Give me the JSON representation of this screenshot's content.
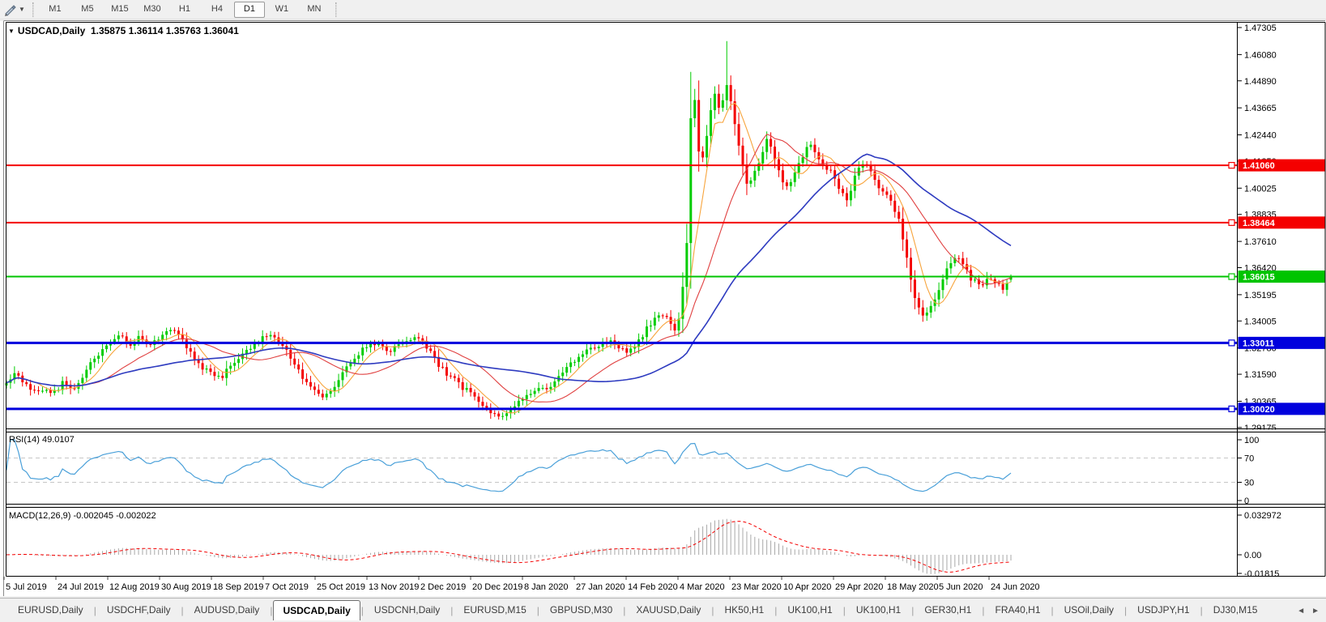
{
  "toolbar": {
    "tool_icon": "drawing-tool",
    "timeframes": [
      "M1",
      "M5",
      "M15",
      "M30",
      "H1",
      "H4",
      "D1",
      "W1",
      "MN"
    ],
    "active_timeframe": "D1"
  },
  "chart": {
    "title": "USDCAD,Daily",
    "ohlc": "1.35875 1.36114 1.35763 1.36041"
  },
  "chart_data": {
    "type": "candlestick",
    "symbol": "USDCAD",
    "period": "Daily",
    "current_candle": {
      "open": 1.35875,
      "high": 1.36114,
      "low": 1.35763,
      "close": 1.36041
    },
    "price_axis_ticks": [
      "1.47305",
      "1.46080",
      "1.44890",
      "1.43665",
      "1.42440",
      "1.41250",
      "1.40025",
      "1.38835",
      "1.37610",
      "1.36420",
      "1.35195",
      "1.34005",
      "1.32780",
      "1.31590",
      "1.30365",
      "1.29175"
    ],
    "date_axis_ticks": [
      "5 Jul 2019",
      "24 Jul 2019",
      "12 Aug 2019",
      "30 Aug 2019",
      "18 Sep 2019",
      "7 Oct 2019",
      "25 Oct 2019",
      "13 Nov 2019",
      "2 Dec 2019",
      "20 Dec 2019",
      "8 Jan 2020",
      "27 Jan 2020",
      "14 Feb 2020",
      "4 Mar 2020",
      "23 Mar 2020",
      "10 Apr 2020",
      "29 Apr 2020",
      "18 May 2020",
      "5 Jun 2020",
      "24 Jun 2020"
    ],
    "levels": [
      {
        "price": 1.4106,
        "label": "1.41060",
        "color": "#f40000",
        "width": 2
      },
      {
        "price": 1.38464,
        "label": "1.38464",
        "color": "#f40000",
        "width": 2
      },
      {
        "price": 1.36015,
        "label": "1.36015",
        "color": "#00c400",
        "width": 2
      },
      {
        "price": 1.33011,
        "label": "1.33011",
        "color": "#0000dd",
        "width": 3
      },
      {
        "price": 1.3002,
        "label": "1.30020",
        "color": "#0000dd",
        "width": 3
      }
    ],
    "candles": {
      "count": 252,
      "bull_color": "#00cc00",
      "bear_color": "#f40000",
      "spike_high": 1.4669,
      "close_path": [
        [
          0.0,
          1.313
        ],
        [
          0.01,
          1.316
        ],
        [
          0.022,
          1.3105
        ],
        [
          0.035,
          1.3075
        ],
        [
          0.05,
          1.309
        ],
        [
          0.058,
          1.3135
        ],
        [
          0.066,
          1.3085
        ],
        [
          0.076,
          1.315
        ],
        [
          0.086,
          1.3225
        ],
        [
          0.095,
          1.327
        ],
        [
          0.102,
          1.33
        ],
        [
          0.112,
          1.3345
        ],
        [
          0.122,
          1.329
        ],
        [
          0.132,
          1.333
        ],
        [
          0.142,
          1.33
        ],
        [
          0.153,
          1.332
        ],
        [
          0.163,
          1.337
        ],
        [
          0.172,
          1.333
        ],
        [
          0.182,
          1.327
        ],
        [
          0.192,
          1.32
        ],
        [
          0.204,
          1.316
        ],
        [
          0.213,
          1.314
        ],
        [
          0.222,
          1.32
        ],
        [
          0.235,
          1.3245
        ],
        [
          0.247,
          1.329
        ],
        [
          0.256,
          1.333
        ],
        [
          0.266,
          1.334
        ],
        [
          0.276,
          1.329
        ],
        [
          0.287,
          1.321
        ],
        [
          0.297,
          1.313
        ],
        [
          0.307,
          1.308
        ],
        [
          0.317,
          1.3055
        ],
        [
          0.327,
          1.31
        ],
        [
          0.338,
          1.318
        ],
        [
          0.349,
          1.325
        ],
        [
          0.359,
          1.328
        ],
        [
          0.37,
          1.33
        ],
        [
          0.381,
          1.327
        ],
        [
          0.392,
          1.329
        ],
        [
          0.402,
          1.331
        ],
        [
          0.41,
          1.332
        ],
        [
          0.42,
          1.327
        ],
        [
          0.43,
          1.32
        ],
        [
          0.441,
          1.315
        ],
        [
          0.451,
          1.311
        ],
        [
          0.462,
          1.307
        ],
        [
          0.472,
          1.302
        ],
        [
          0.483,
          1.298
        ],
        [
          0.493,
          1.2958
        ],
        [
          0.503,
          1.299
        ],
        [
          0.513,
          1.3045
        ],
        [
          0.525,
          1.309
        ],
        [
          0.54,
          1.3105
        ],
        [
          0.553,
          1.316
        ],
        [
          0.565,
          1.322
        ],
        [
          0.578,
          1.326
        ],
        [
          0.59,
          1.329
        ],
        [
          0.603,
          1.331
        ],
        [
          0.616,
          1.3255
        ],
        [
          0.625,
          1.329
        ],
        [
          0.634,
          1.334
        ],
        [
          0.643,
          1.34
        ],
        [
          0.652,
          1.344
        ],
        [
          0.66,
          1.339
        ],
        [
          0.668,
          1.336
        ],
        [
          0.672,
          1.349
        ],
        [
          0.675,
          1.362
        ],
        [
          0.679,
          1.385
        ],
        [
          0.681,
          1.43
        ],
        [
          0.684,
          1.448
        ],
        [
          0.688,
          1.425
        ],
        [
          0.691,
          1.408
        ],
        [
          0.695,
          1.418
        ],
        [
          0.7,
          1.433
        ],
        [
          0.705,
          1.442
        ],
        [
          0.71,
          1.435
        ],
        [
          0.718,
          1.447
        ],
        [
          0.722,
          1.439
        ],
        [
          0.727,
          1.425
        ],
        [
          0.732,
          1.413
        ],
        [
          0.738,
          1.4
        ],
        [
          0.745,
          1.407
        ],
        [
          0.752,
          1.417
        ],
        [
          0.759,
          1.423
        ],
        [
          0.766,
          1.412
        ],
        [
          0.771,
          1.405
        ],
        [
          0.778,
          1.399
        ],
        [
          0.785,
          1.408
        ],
        [
          0.793,
          1.415
        ],
        [
          0.8,
          1.421
        ],
        [
          0.808,
          1.415
        ],
        [
          0.815,
          1.41
        ],
        [
          0.822,
          1.409
        ],
        [
          0.83,
          1.399
        ],
        [
          0.838,
          1.395
        ],
        [
          0.846,
          1.407
        ],
        [
          0.854,
          1.412
        ],
        [
          0.862,
          1.406
        ],
        [
          0.868,
          1.399
        ],
        [
          0.875,
          1.4
        ],
        [
          0.882,
          1.392
        ],
        [
          0.889,
          1.385
        ],
        [
          0.897,
          1.368
        ],
        [
          0.905,
          1.348
        ],
        [
          0.913,
          1.342
        ],
        [
          0.921,
          1.346
        ],
        [
          0.929,
          1.355
        ],
        [
          0.937,
          1.364
        ],
        [
          0.945,
          1.37
        ],
        [
          0.953,
          1.365
        ],
        [
          0.961,
          1.359
        ],
        [
          0.969,
          1.356
        ],
        [
          0.978,
          1.36
        ],
        [
          0.985,
          1.3565
        ],
        [
          0.993,
          1.355
        ],
        [
          1.0,
          1.36041
        ]
      ]
    },
    "moving_averages": [
      {
        "period": 7,
        "color": "#f7a43c",
        "name": "ma-fast"
      },
      {
        "period": 20,
        "color": "#e04040",
        "name": "ma-medium"
      },
      {
        "period": 45,
        "color": "#2e3bc0",
        "name": "ma-slow"
      }
    ],
    "rsi": {
      "label": "RSI(14) 49.0107",
      "period": 14,
      "value": 49.0107,
      "axis_ticks": [
        "100",
        "70",
        "30",
        "0"
      ],
      "dashed_levels": [
        70,
        30
      ],
      "color": "#4aa0d9"
    },
    "macd": {
      "label": "MACD(12,26,9) -0.002045 -0.002022",
      "fast": 12,
      "slow": 26,
      "signal": 9,
      "macd_value": -0.002045,
      "signal_value": -0.002022,
      "axis_ticks": [
        "0.032972",
        "0.00",
        "-0.01815"
      ],
      "histogram_color": "#a8a8a8",
      "signal_color": "#f40000"
    }
  },
  "tabs": {
    "items": [
      "EURUSD,Daily",
      "USDCHF,Daily",
      "AUDUSD,Daily",
      "USDCAD,Daily",
      "USDCNH,Daily",
      "EURUSD,M15",
      "GBPUSD,M30",
      "XAUUSD,Daily",
      "HK50,H1",
      "UK100,H1",
      "UK100,H1",
      "GER30,H1",
      "FRA40,H1",
      "USOil,Daily",
      "USDJPY,H1",
      "DJ30,M15"
    ],
    "active_index": 3,
    "nav_left": "◄",
    "nav_right": "►"
  }
}
